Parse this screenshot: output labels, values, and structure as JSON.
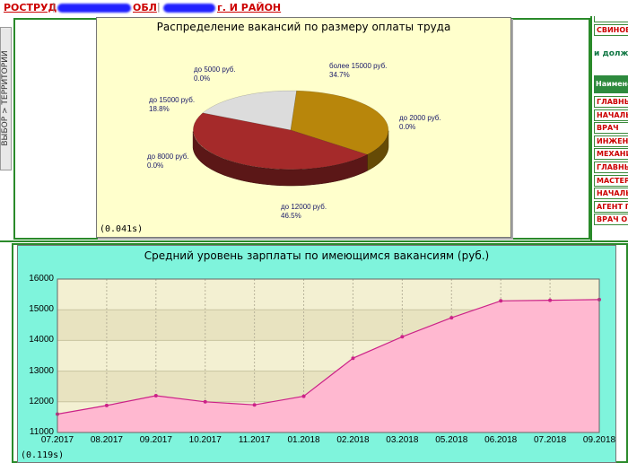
{
  "topbar": {
    "link1": "РОСТРУД",
    "link2_suffix": "ОБЛ",
    "link3_suffix": "г. И РАЙОН",
    "separator": "|",
    "redaction_color": "#2020ff"
  },
  "left_strip": {
    "label": "ВЫБОР > ТЕРРИТОРИИ"
  },
  "right_column": {
    "top_item": "СВИНОВ",
    "subtitle": "и долж",
    "header": "Наимено",
    "items": [
      "ГЛАВНЫ",
      "НАЧАЛЬ",
      "ВРАЧ",
      "ИНЖЕНЕ",
      "МЕХАНИ",
      "ГЛАВНЫ",
      "МАСТЕР",
      "НАЧАЛЬ",
      "АГЕНТ П",
      "ВРАЧ ОБ"
    ]
  },
  "pie": {
    "title": "Распределение вакансий по размеру оплаты труда",
    "timing": "(0.041s)",
    "labels": [
      {
        "name": "более 15000 руб.",
        "pct": "34.7%"
      },
      {
        "name": "до 2000 руб.",
        "pct": "0.0%"
      },
      {
        "name": "до 12000 руб.",
        "pct": "46.5%"
      },
      {
        "name": "до 8000 руб.",
        "pct": "0.0%"
      },
      {
        "name": "до 15000 руб.",
        "pct": "18.8%"
      },
      {
        "name": "до 5000 руб.",
        "pct": "0.0%"
      }
    ]
  },
  "line": {
    "title": "Средний уровень зарплаты по имеющимся вакансиям (руб.)",
    "timing": "(0.119s)",
    "y_ticks": [
      "16000",
      "15000",
      "14000",
      "13000",
      "12000",
      "11000"
    ]
  },
  "chart_data": [
    {
      "type": "pie",
      "title": "Распределение вакансий по размеру оплаты труда",
      "categories": [
        "более 15000 руб.",
        "до 2000 руб.",
        "до 12000 руб.",
        "до 8000 руб.",
        "до 15000 руб.",
        "до 5000 руб."
      ],
      "values": [
        34.7,
        0.0,
        46.5,
        0.0,
        18.8,
        0.0
      ],
      "colors": [
        "#b8860b",
        "#d0d0d0",
        "#a52a2a",
        "#cc3333",
        "#dcdcdc",
        "#e0e0e0"
      ]
    },
    {
      "type": "area",
      "title": "Средний уровень зарплаты по имеющимся вакансиям (руб.)",
      "categories": [
        "07.2017",
        "08.2017",
        "09.2017",
        "10.2017",
        "11.2017",
        "01.2018",
        "02.2018",
        "03.2018",
        "05.2018",
        "06.2018",
        "07.2018",
        "09.2018"
      ],
      "values": [
        11600,
        11880,
        12200,
        12000,
        11900,
        12180,
        13420,
        14120,
        14740,
        15290,
        15310,
        15330
      ],
      "ylim": [
        11000,
        16000
      ],
      "grid": true,
      "colors": {
        "fill": "#ffb8d0",
        "line": "#cc2288",
        "plot_bg": "#f3f0d2",
        "plot_bg_alt": "#e8e3c0",
        "panel_bg": "#7ff4dc"
      }
    }
  ]
}
